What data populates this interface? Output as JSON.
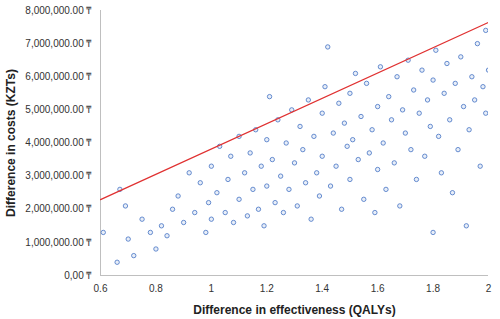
{
  "chart_data": {
    "type": "scatter",
    "x_label": "Difference in effectiveness (QALYs)",
    "y_label": "Difference in costs (KZTs)",
    "xlim": [
      0.6,
      2
    ],
    "xticks": [
      0.6,
      0.8,
      1,
      1.2,
      1.4,
      1.6,
      1.8,
      2
    ],
    "ylim": [
      0,
      8000000
    ],
    "yticks": [
      {
        "value": 0,
        "label": "0,00 ₸"
      },
      {
        "value": 1000000,
        "label": "1,000,000.00 ₸"
      },
      {
        "value": 2000000,
        "label": "2,000,000.00 ₸"
      },
      {
        "value": 3000000,
        "label": "3,000,000.00 ₸"
      },
      {
        "value": 4000000,
        "label": "4,000,000.00 ₸"
      },
      {
        "value": 5000000,
        "label": "5,000,000.00 ₸"
      },
      {
        "value": 6000000,
        "label": "6,000,000.00 ₸"
      },
      {
        "value": 7000000,
        "label": "7,000,000.00 ₸"
      },
      {
        "value": 8000000,
        "label": "8,000,000.00 ₸"
      }
    ],
    "grid": false,
    "series": [
      {
        "type": "scatter",
        "color": "#4472c4",
        "marker": "circle",
        "x": [
          0.61,
          0.66,
          0.67,
          0.69,
          0.7,
          0.72,
          0.75,
          0.78,
          0.8,
          0.82,
          0.84,
          0.86,
          0.88,
          0.9,
          0.92,
          0.94,
          0.96,
          0.98,
          0.99,
          1.0,
          1.0,
          1.02,
          1.03,
          1.05,
          1.06,
          1.07,
          1.08,
          1.1,
          1.1,
          1.12,
          1.13,
          1.14,
          1.15,
          1.16,
          1.17,
          1.18,
          1.19,
          1.2,
          1.2,
          1.21,
          1.22,
          1.23,
          1.24,
          1.25,
          1.26,
          1.27,
          1.28,
          1.29,
          1.3,
          1.31,
          1.32,
          1.33,
          1.34,
          1.35,
          1.36,
          1.37,
          1.38,
          1.39,
          1.4,
          1.4,
          1.41,
          1.42,
          1.43,
          1.44,
          1.45,
          1.46,
          1.47,
          1.48,
          1.49,
          1.5,
          1.5,
          1.51,
          1.52,
          1.53,
          1.54,
          1.55,
          1.56,
          1.57,
          1.58,
          1.59,
          1.6,
          1.6,
          1.61,
          1.62,
          1.63,
          1.64,
          1.65,
          1.66,
          1.67,
          1.68,
          1.69,
          1.7,
          1.71,
          1.72,
          1.73,
          1.74,
          1.75,
          1.76,
          1.77,
          1.78,
          1.79,
          1.8,
          1.8,
          1.81,
          1.82,
          1.83,
          1.84,
          1.85,
          1.86,
          1.87,
          1.88,
          1.89,
          1.9,
          1.91,
          1.92,
          1.93,
          1.94,
          1.95,
          1.96,
          1.97,
          1.98,
          1.99,
          1.99,
          2.0
        ],
        "values": [
          1300000,
          400000,
          2600000,
          2100000,
          1100000,
          600000,
          1700000,
          1300000,
          800000,
          1500000,
          1200000,
          2000000,
          2400000,
          1600000,
          3100000,
          1900000,
          2800000,
          1300000,
          2200000,
          3300000,
          1700000,
          2500000,
          3900000,
          1900000,
          2900000,
          3600000,
          1600000,
          4200000,
          2300000,
          3100000,
          1800000,
          3700000,
          2600000,
          4400000,
          2000000,
          3300000,
          1500000,
          2700000,
          4100000,
          5400000,
          3500000,
          2200000,
          4700000,
          3000000,
          1900000,
          4000000,
          2600000,
          5000000,
          3400000,
          2100000,
          4500000,
          3800000,
          2800000,
          5300000,
          1700000,
          4200000,
          3100000,
          2400000,
          4900000,
          3600000,
          5700000,
          6900000,
          2700000,
          4300000,
          3300000,
          5200000,
          2000000,
          4600000,
          3900000,
          5500000,
          2900000,
          4100000,
          6100000,
          3500000,
          4800000,
          2300000,
          5800000,
          3700000,
          4400000,
          1900000,
          5100000,
          3200000,
          6300000,
          4000000,
          2600000,
          5400000,
          4700000,
          3400000,
          6000000,
          2100000,
          5000000,
          4300000,
          6500000,
          3800000,
          5600000,
          2900000,
          4900000,
          6200000,
          3600000,
          5300000,
          4500000,
          1300000,
          5900000,
          6800000,
          4200000,
          3100000,
          5500000,
          6400000,
          4700000,
          2500000,
          5800000,
          3800000,
          6600000,
          5100000,
          1500000,
          4400000,
          6000000,
          5300000,
          7000000,
          3300000,
          5700000,
          7400000,
          4900000,
          6200000
        ]
      },
      {
        "type": "line",
        "color": "#e03131",
        "line_style": "solid",
        "x": [
          0.6,
          2
        ],
        "values": [
          2290000,
          7640000
        ]
      }
    ]
  }
}
